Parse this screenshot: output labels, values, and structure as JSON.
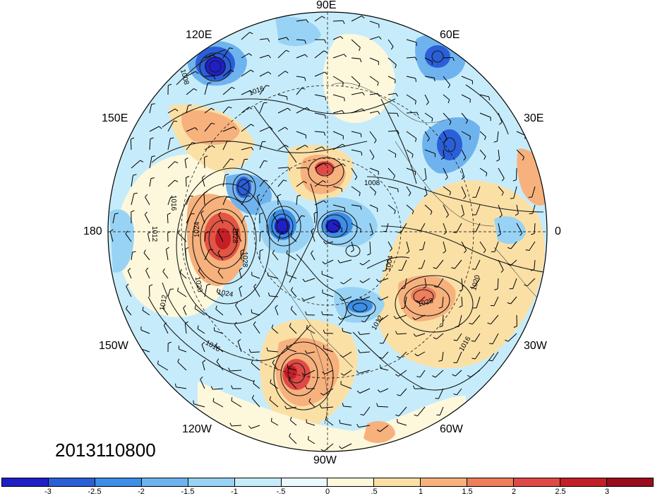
{
  "plot": {
    "date_label": "2013110800",
    "longitude_labels": [
      "90E",
      "120E",
      "60E",
      "150E",
      "30E",
      "180",
      "0",
      "150W",
      "30W",
      "120W",
      "60W",
      "90W"
    ],
    "contour_labels": [
      "1008",
      "1016",
      "1008",
      "1016",
      "1012",
      "1024",
      "1028",
      "1028",
      "1020",
      "1024",
      "1012",
      "1016",
      "1020",
      "1028",
      "1016",
      "1004",
      "1012"
    ]
  },
  "colorbar": {
    "tick_labels": [
      "-3",
      "-2.5",
      "-2",
      "-1.5",
      "-1",
      "-.5",
      "0",
      ".5",
      "1",
      "1.5",
      "2",
      "2.5",
      "3"
    ],
    "colors": [
      "#1f1fc8",
      "#2b5fd8",
      "#3c8ee6",
      "#6fb3ee",
      "#98d3f5",
      "#c6ecfb",
      "#ecfafd",
      "#fdf8dc",
      "#fbe0a6",
      "#f7b17d",
      "#ee7e5c",
      "#e04a45",
      "#c31f27",
      "#9a0c1e"
    ]
  },
  "anomaly_features": [
    {
      "name": "blue-lobe-120E",
      "color": "#2232c6"
    },
    {
      "name": "blue-lobe-60E",
      "color": "#3a6fdc"
    },
    {
      "name": "blue-lobe-30E",
      "color": "#3b7ddf"
    },
    {
      "name": "red-lobe-north-pacific",
      "color": "#e25443"
    },
    {
      "name": "red-lobe-north-america",
      "color": "#d4373a"
    },
    {
      "name": "red-lobe-atlantic",
      "color": "#ee8a62"
    }
  ]
}
